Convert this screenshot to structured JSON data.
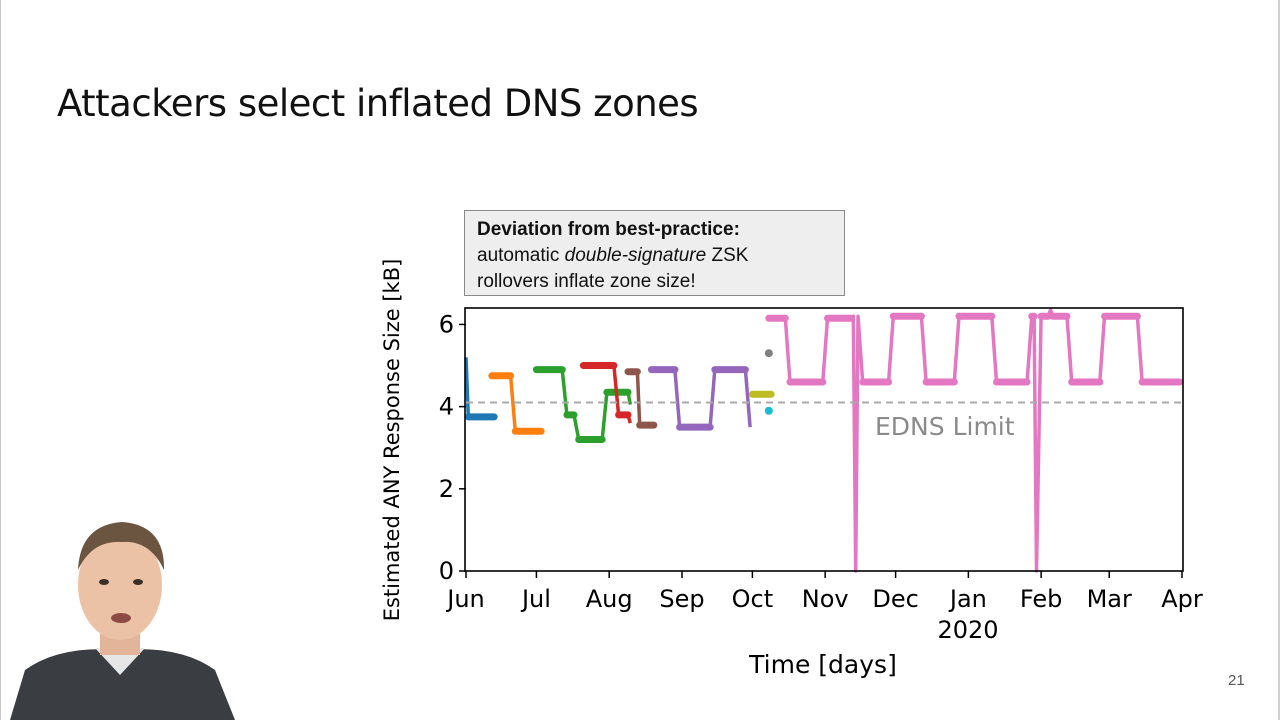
{
  "slide": {
    "title": "Attackers select inflated DNS zones",
    "page_number": "21"
  },
  "callout": {
    "heading": "Deviation from best-practice:",
    "line1_pre": "automatic ",
    "line1_italic": "double-signature",
    "line1_post": " ZSK",
    "line2": "rollovers inflate zone size!"
  },
  "chart_data": {
    "type": "line",
    "xlabel": "Time [days]",
    "ylabel": "Estimated ANY Response Size [kB]",
    "x_ticks": [
      "Jun",
      "Jul",
      "Aug",
      "Sep",
      "Oct",
      "Nov",
      "Dec",
      "Jan",
      "Feb",
      "Mar",
      "Apr"
    ],
    "x_year_label": "2020",
    "y_ticks": [
      "0",
      "2",
      "4",
      "6"
    ],
    "ylim": [
      0,
      6.4
    ],
    "annotation": "EDNS Limit",
    "reference_line": {
      "y": 4.1,
      "style": "dashed",
      "color": "#aaaaaa"
    },
    "series": [
      {
        "color": "#1f77b4",
        "points": [
          [
            "2019-06-01",
            5.2
          ],
          [
            "2019-06-02",
            3.75
          ],
          [
            "2019-06-13",
            3.75
          ]
        ]
      },
      {
        "color": "#ff7f0e",
        "points": [
          [
            "2019-06-12",
            4.75
          ],
          [
            "2019-06-20",
            4.75
          ],
          [
            "2019-06-22",
            3.4
          ],
          [
            "2019-07-03",
            3.4
          ]
        ]
      },
      {
        "color": "#2ca02c",
        "points": [
          [
            "2019-07-01",
            4.9
          ],
          [
            "2019-07-12",
            4.9
          ],
          [
            "2019-07-14",
            3.8
          ],
          [
            "2019-07-17",
            3.8
          ],
          [
            "2019-07-19",
            3.2
          ],
          [
            "2019-07-29",
            3.2
          ],
          [
            "2019-07-31",
            4.35
          ],
          [
            "2019-08-09",
            4.35
          ],
          [
            "2019-08-10",
            4.05
          ]
        ]
      },
      {
        "color": "#d62728",
        "points": [
          [
            "2019-07-21",
            5.0
          ],
          [
            "2019-08-03",
            5.0
          ],
          [
            "2019-08-05",
            3.8
          ],
          [
            "2019-08-09",
            3.8
          ],
          [
            "2019-08-10",
            3.6
          ]
        ]
      },
      {
        "color": "#8c564b",
        "points": [
          [
            "2019-08-09",
            4.85
          ],
          [
            "2019-08-13",
            4.85
          ],
          [
            "2019-08-14",
            3.55
          ],
          [
            "2019-08-20",
            3.55
          ]
        ]
      },
      {
        "color": "#9467bd",
        "points": [
          [
            "2019-08-19",
            4.9
          ],
          [
            "2019-08-29",
            4.9
          ],
          [
            "2019-08-31",
            3.5
          ],
          [
            "2019-09-13",
            3.5
          ],
          [
            "2019-09-15",
            4.9
          ],
          [
            "2019-09-28",
            4.9
          ],
          [
            "2019-09-30",
            3.5
          ]
        ]
      },
      {
        "color": "#7f7f7f",
        "points": [
          [
            "2019-10-08",
            5.3
          ]
        ]
      },
      {
        "color": "#bcbd22",
        "points": [
          [
            "2019-10-01",
            4.3
          ],
          [
            "2019-10-09",
            4.3
          ]
        ]
      },
      {
        "color": "#17becf",
        "points": [
          [
            "2019-10-08",
            3.9
          ]
        ]
      },
      {
        "color": "#e377c2",
        "points": [
          [
            "2019-10-08",
            6.15
          ],
          [
            "2019-10-15",
            6.15
          ],
          [
            "2019-10-17",
            4.6
          ],
          [
            "2019-10-31",
            4.6
          ],
          [
            "2019-11-02",
            6.15
          ],
          [
            "2019-11-12",
            6.15
          ],
          [
            "2019-11-13",
            6.2
          ],
          [
            "2019-11-14",
            0.0
          ],
          [
            "2019-11-15",
            6.2
          ],
          [
            "2019-11-17",
            4.6
          ],
          [
            "2019-11-28",
            4.6
          ],
          [
            "2019-11-30",
            6.2
          ],
          [
            "2019-12-12",
            6.2
          ],
          [
            "2019-12-14",
            4.6
          ],
          [
            "2019-12-26",
            4.6
          ],
          [
            "2019-12-28",
            6.2
          ],
          [
            "2020-01-11",
            6.2
          ],
          [
            "2020-01-13",
            4.6
          ],
          [
            "2020-01-26",
            4.6
          ],
          [
            "2020-01-28",
            6.2
          ],
          [
            "2020-01-29",
            6.2
          ],
          [
            "2020-01-30",
            0.0
          ],
          [
            "2020-02-01",
            6.2
          ],
          [
            "2020-02-04",
            6.2
          ],
          [
            "2020-02-05",
            6.5
          ],
          [
            "2020-02-06",
            6.2
          ],
          [
            "2020-02-12",
            6.2
          ],
          [
            "2020-02-14",
            4.6
          ],
          [
            "2020-02-26",
            4.6
          ],
          [
            "2020-02-28",
            6.2
          ],
          [
            "2020-03-13",
            6.2
          ],
          [
            "2020-03-15",
            4.6
          ],
          [
            "2020-03-31",
            4.6
          ]
        ]
      }
    ]
  }
}
